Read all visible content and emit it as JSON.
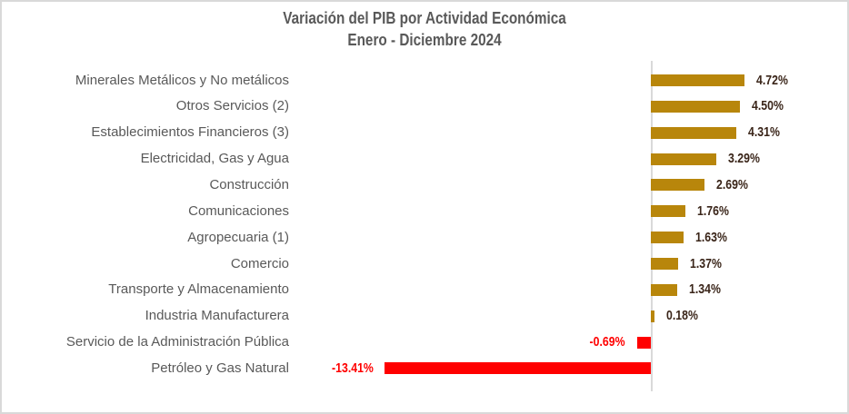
{
  "title": {
    "line1": "Variación del PIB por Actividad Económica",
    "line2": "Enero - Diciembre 2024"
  },
  "chart_data": {
    "type": "bar",
    "orientation": "horizontal",
    "title": "Variación del PIB por Actividad Económica",
    "subtitle": "Enero - Diciembre 2024",
    "xlabel": "",
    "ylabel": "",
    "grid": false,
    "legend": false,
    "xlim": [
      -14,
      10
    ],
    "categories": [
      "Minerales Metálicos y No metálicos",
      "Otros Servicios (2)",
      "Establecimientos Financieros (3)",
      "Electricidad, Gas y Agua",
      "Construcción",
      "Comunicaciones",
      "Agropecuaria (1)",
      "Comercio",
      "Transporte y Almacenamiento",
      "Industria Manufacturera",
      "Servicio de la Administración Pública",
      "Petróleo y Gas Natural"
    ],
    "values": [
      4.72,
      4.5,
      4.31,
      3.29,
      2.69,
      1.76,
      1.63,
      1.37,
      1.34,
      0.18,
      -0.69,
      -13.41
    ],
    "value_labels": [
      "4.72%",
      "4.50%",
      "4.31%",
      "3.29%",
      "2.69%",
      "1.76%",
      "1.63%",
      "1.37%",
      "1.34%",
      "0.18%",
      "-0.69%",
      "-13.41%"
    ],
    "colors": {
      "positive_bar": "#b8860b",
      "negative_bar": "#ff0000",
      "positive_value_label": "#3a2519",
      "negative_value_label": "#ff0000",
      "category_label": "#595959",
      "title": "#595959",
      "axis_line": "#d9d9d9"
    }
  }
}
